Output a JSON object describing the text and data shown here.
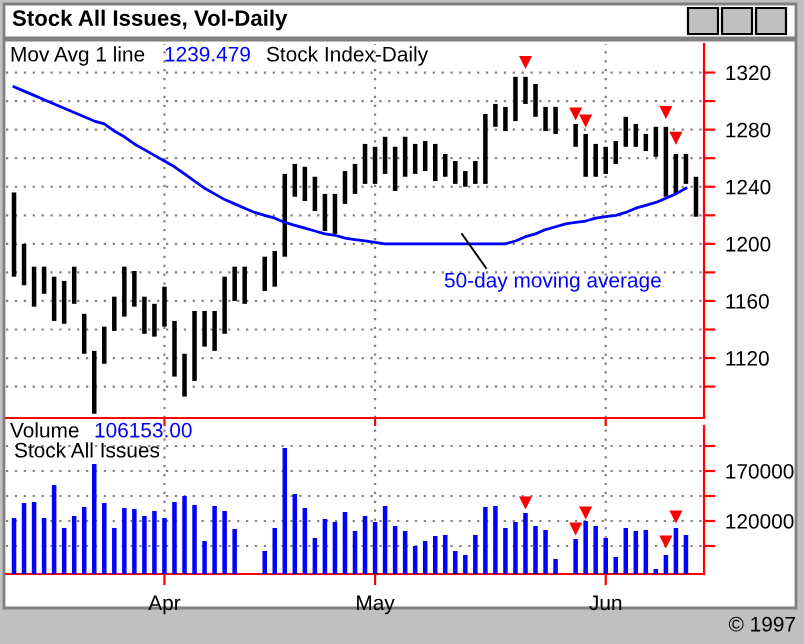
{
  "chart_data": [
    {
      "type": "bar",
      "title": "Stock All Issues, Vol-Daily",
      "annotations": [
        "Mov Avg 1 line",
        "1239.479",
        "Stock Index-Daily",
        "50-day moving average"
      ],
      "categories": [
        null,
        null,
        null,
        null,
        null,
        null,
        null,
        null,
        null,
        null,
        null,
        null,
        null,
        null,
        null,
        null,
        null,
        null,
        null,
        null,
        null,
        null,
        null,
        null,
        null,
        null,
        null,
        null,
        null,
        null,
        null,
        null,
        null,
        null,
        null,
        null,
        null,
        null,
        null,
        null,
        null,
        null,
        null,
        null,
        null,
        null,
        null,
        null,
        null,
        null,
        null,
        null,
        null,
        null,
        null,
        null,
        null,
        null,
        null,
        null,
        null,
        null,
        null,
        null,
        null,
        null,
        null,
        null,
        null
      ],
      "series": [
        {
          "color": "#000000",
          "values": [
            59,
            29,
            28,
            19,
            31,
            30,
            26,
            28,
            44,
            26,
            24,
            35,
            25,
            26,
            23,
            28,
            39,
            30,
            49,
            25,
            28,
            40,
            24,
            26,
            null,
            24,
            25,
            58,
            23,
            24,
            24,
            26,
            28,
            23,
            21,
            28,
            26,
            26,
            31,
            28,
            21,
            21,
            26,
            16,
            16,
            11,
            16,
            49,
            16,
            17,
            31,
            19,
            23,
            17,
            19,
            null,
            16,
            30,
            23,
            19,
            16,
            21,
            16,
            12,
            21,
            49,
            28,
            21,
            28
          ],
          "base": [
            1177,
            1171,
            1156,
            1165,
            1146,
            1144,
            1158,
            1123,
            1081,
            1116,
            1139,
            1149,
            1156,
            1137,
            1135,
            1142,
            1107,
            1093,
            1104,
            1128,
            1125,
            1137,
            1160,
            1158,
            null,
            1167,
            1170,
            1191,
            1233,
            1230,
            1223,
            1209,
            1207,
            1228,
            1235,
            1242,
            1242,
            1249,
            1237,
            1247,
            1249,
            1251,
            1244,
            1247,
            1242,
            1240,
            1242,
            1242,
            1282,
            1279,
            1286,
            1298,
            1289,
            1279,
            1277,
            null,
            1268,
            1247,
            1247,
            1249,
            1256,
            1268,
            1268,
            1265,
            1261,
            1233,
            1235,
            1242,
            1219
          ]
        },
        {
          "type": "line",
          "color": "#0000ff",
          "values": [
            1310,
            1307,
            1304,
            1301,
            1298,
            1295,
            1292,
            1289,
            1286,
            1284,
            1279,
            1275,
            1270,
            1266,
            1262,
            1258,
            1254,
            1249,
            1244,
            1239,
            1235,
            1231,
            1228,
            1225,
            1222,
            1220,
            1218,
            1215,
            1213,
            1211,
            1209,
            1207,
            1206,
            1204,
            1203,
            1202,
            1201,
            1200,
            1200,
            1200,
            1200,
            1200,
            1200,
            1200,
            1200,
            1200,
            1200,
            1200,
            1200,
            1200,
            1202,
            1205,
            1207,
            1210,
            1212,
            1214,
            1215,
            1216,
            1218,
            1219,
            1220,
            1222,
            1225,
            1227,
            1229,
            1232,
            1235,
            1239,
            null
          ]
        },
        {
          "type": "scatter",
          "color": "#ff0000",
          "marker": "triangle",
          "values": [
            null,
            null,
            null,
            null,
            null,
            null,
            null,
            null,
            null,
            null,
            null,
            null,
            null,
            null,
            null,
            null,
            null,
            null,
            null,
            null,
            null,
            null,
            null,
            null,
            null,
            null,
            null,
            null,
            null,
            null,
            null,
            null,
            null,
            null,
            null,
            null,
            null,
            null,
            null,
            null,
            null,
            null,
            null,
            null,
            null,
            null,
            null,
            null,
            null,
            null,
            null,
            1327,
            null,
            null,
            null,
            null,
            1291,
            1286,
            null,
            null,
            null,
            null,
            null,
            null,
            null,
            1292,
            1274,
            null,
            null
          ]
        }
      ],
      "ylim": [
        1078,
        1340
      ],
      "yticks": [
        {
          "value": 1100,
          "label": null
        },
        1120,
        {
          "value": 1140,
          "label": null
        },
        1160,
        {
          "value": 1180,
          "label": null
        },
        1200,
        {
          "value": 1220,
          "label": null
        },
        1240,
        {
          "value": 1260,
          "label": null
        },
        1280,
        {
          "value": 1300,
          "label": null
        },
        1320
      ],
      "grid": true,
      "tick_labels": "y"
    },
    {
      "type": "bar",
      "annotations": [
        "Volume",
        "106153.00",
        "Stock All Issues",
        "© 1997"
      ],
      "categories": [
        null,
        null,
        null,
        null,
        null,
        null,
        null,
        null,
        null,
        null,
        null,
        null,
        null,
        null,
        null,
        "Apr",
        null,
        null,
        null,
        null,
        null,
        null,
        null,
        null,
        null,
        null,
        null,
        null,
        null,
        null,
        null,
        null,
        null,
        null,
        null,
        null,
        "May",
        null,
        null,
        null,
        null,
        null,
        null,
        null,
        null,
        null,
        null,
        null,
        null,
        null,
        null,
        null,
        null,
        null,
        null,
        null,
        null,
        null,
        null,
        "Jun",
        null,
        null,
        null,
        null,
        null,
        null,
        null,
        null,
        null
      ],
      "series": [
        {
          "color": "#0000ff",
          "values": [
            123000,
            138000,
            139000,
            123000,
            156000,
            113000,
            125000,
            134000,
            177000,
            138000,
            113000,
            133000,
            132000,
            125000,
            130000,
            123000,
            139000,
            145000,
            136000,
            100000,
            135000,
            130000,
            112000,
            null,
            null,
            90000,
            113000,
            193000,
            147000,
            133000,
            103000,
            122000,
            119000,
            129000,
            110000,
            125000,
            119000,
            135000,
            115000,
            110000,
            95000,
            100000,
            105000,
            106000,
            90000,
            86000,
            106000,
            134000,
            135000,
            113000,
            119000,
            128000,
            115000,
            111000,
            82000,
            null,
            102000,
            120000,
            115000,
            103000,
            84000,
            113000,
            110000,
            111000,
            72000,
            86000,
            113000,
            106000,
            null
          ]
        },
        {
          "type": "scatter",
          "color": "#ff0000",
          "marker": "triangle",
          "values": [
            null,
            null,
            null,
            null,
            null,
            null,
            null,
            null,
            null,
            null,
            null,
            null,
            null,
            null,
            null,
            null,
            null,
            null,
            null,
            null,
            null,
            null,
            null,
            null,
            null,
            null,
            null,
            null,
            null,
            null,
            null,
            null,
            null,
            null,
            null,
            null,
            null,
            null,
            null,
            null,
            null,
            null,
            null,
            null,
            null,
            null,
            null,
            null,
            null,
            null,
            null,
            138000,
            null,
            null,
            null,
            null,
            112000,
            128000,
            null,
            null,
            null,
            null,
            null,
            null,
            null,
            99000,
            124000,
            null,
            null
          ]
        }
      ],
      "ylim": [
        67000,
        215000
      ],
      "yticks": [
        {
          "value": 95000,
          "label": null
        },
        120000,
        {
          "value": 145000,
          "label": null
        },
        170000,
        {
          "value": 195000,
          "label": null
        }
      ],
      "grid": true
    }
  ]
}
